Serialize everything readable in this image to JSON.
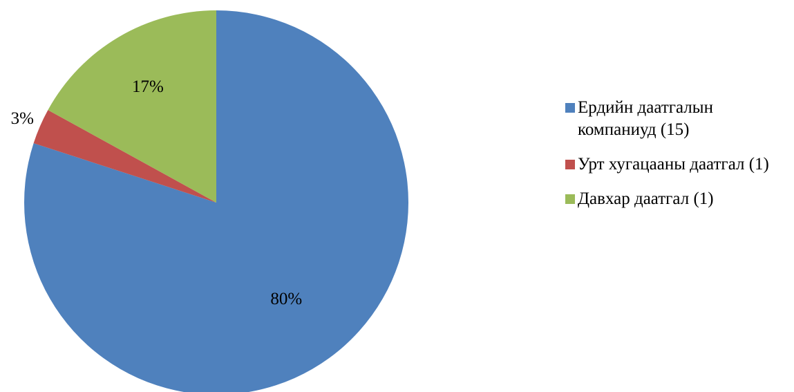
{
  "chart_data": {
    "type": "pie",
    "title": "",
    "slices": [
      {
        "name": "Ердийн даатгалын компаниуд (15)",
        "value": 80,
        "label": "80%",
        "color": "#4F81BD"
      },
      {
        "name": "Урт хугацааны даатгал (1)",
        "value": 3,
        "label": "3%",
        "color": "#C0504D"
      },
      {
        "name": "Давхар даатгал (1)",
        "value": 17,
        "label": "17%",
        "color": "#9BBB59"
      }
    ],
    "legend_position": "right"
  }
}
